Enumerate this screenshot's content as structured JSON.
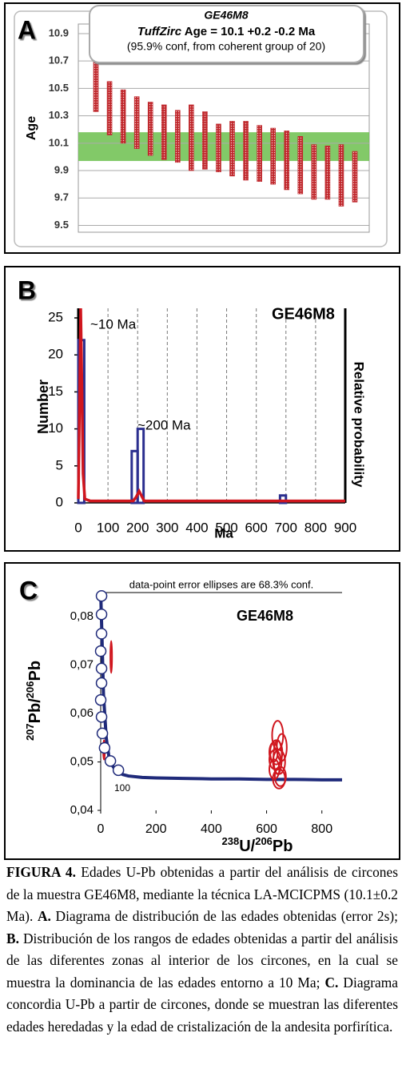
{
  "chart_data": [
    {
      "type": "range_bar",
      "panel": "A",
      "title": {
        "name": "GE46M8",
        "method": "TuffZirc",
        "age_text": " Age = 10.1   +0.2   -0.2   Ma",
        "conf": "(95.9% conf, from coherent group of 20)"
      },
      "ylabel": "Age",
      "low": [
        10.33,
        10.16,
        10.1,
        10.06,
        10.01,
        9.98,
        9.96,
        9.9,
        9.91,
        9.89,
        9.86,
        9.83,
        9.82,
        9.8,
        9.76,
        9.73,
        9.69,
        9.69,
        9.64,
        9.67
      ],
      "high": [
        10.71,
        10.55,
        10.49,
        10.44,
        10.4,
        10.38,
        10.34,
        10.38,
        10.33,
        10.24,
        10.26,
        10.26,
        10.23,
        10.21,
        10.19,
        10.15,
        10.09,
        10.08,
        10.09,
        10.04
      ],
      "color": "#c0282d",
      "band": {
        "low": 9.97,
        "high": 10.18,
        "color": "#6cbf4e"
      },
      "ylim": [
        9.45,
        10.97
      ],
      "yticks": [
        9.5,
        9.7,
        9.9,
        10.1,
        10.3,
        10.5,
        10.7,
        10.9
      ],
      "grid": true
    },
    {
      "type": "histogram",
      "panel": "B",
      "title": "GE46M8",
      "xlabel": "Ma",
      "ylabel": "Number",
      "y2label": "Relative probability",
      "bins": [
        0,
        20,
        180,
        200,
        220,
        680,
        700
      ],
      "counts": [
        22,
        0,
        7,
        10,
        0,
        1
      ],
      "color": "#2b2f8f",
      "probability": {
        "x": [
          0,
          4,
          8,
          12,
          16,
          22,
          40,
          185,
          195,
          205,
          212,
          222,
          240,
          900
        ],
        "values": [
          0.02,
          0.5,
          1.0,
          0.6,
          0.15,
          0.02,
          0.01,
          0.01,
          0.03,
          0.06,
          0.04,
          0.01,
          0.01,
          0.01
        ],
        "color": "#d0161e",
        "axis": "y2"
      },
      "annotations": [
        "~10 Ma",
        "~200 Ma"
      ],
      "xlim": [
        0,
        900
      ],
      "xticks": [
        0,
        100,
        200,
        300,
        400,
        500,
        600,
        700,
        800,
        900
      ],
      "ylim": [
        0,
        26.3
      ],
      "yticks": [
        0,
        5,
        10,
        15,
        20,
        25
      ],
      "y2lim": [
        0,
        1
      ],
      "grid": true
    },
    {
      "type": "scatter",
      "panel": "C",
      "title": "GE46M8",
      "note": "data-point error ellipses are 68.3% conf.",
      "ylabel": {
        "mass1": "207",
        "el1": "Pb/",
        "mass2": "206",
        "el2": "Pb"
      },
      "xlabel": {
        "mass1": "238",
        "el1": "U/",
        "mass2": "206",
        "el2": "Pb"
      },
      "concordia": {
        "x": [
          0,
          5,
          10,
          20,
          30,
          45,
          60,
          80,
          100,
          150,
          200,
          300,
          400,
          500,
          600,
          700,
          800,
          873
        ],
        "y": [
          0.085,
          0.075,
          0.064,
          0.055,
          0.051,
          0.049,
          0.048,
          0.0474,
          0.0471,
          0.0468,
          0.0467,
          0.0466,
          0.0465,
          0.0465,
          0.0464,
          0.0464,
          0.0463,
          0.0463
        ],
        "color": "#1f2a7a"
      },
      "markers": {
        "x": [
          3,
          3,
          3,
          0,
          3,
          3,
          0,
          3,
          6,
          14,
          35,
          64
        ],
        "y": [
          0.0843,
          0.0805,
          0.0765,
          0.0729,
          0.0693,
          0.0663,
          0.0628,
          0.0593,
          0.0559,
          0.0529,
          0.0502,
          0.0483
        ]
      },
      "marker_label": "100",
      "ellipses": {
        "x": [
          640,
          635,
          645,
          628,
          650,
          640,
          655,
          630,
          645,
          625,
          38,
          12
        ],
        "y": [
          0.0555,
          0.052,
          0.05,
          0.0485,
          0.047,
          0.051,
          0.053,
          0.0505,
          0.0465,
          0.052,
          0.0717,
          0.0525
        ],
        "x_error": [
          20,
          22,
          22,
          18,
          20,
          15,
          18,
          20,
          22,
          15,
          3,
          3
        ],
        "y_error": [
          0.003,
          0.0025,
          0.0025,
          0.002,
          0.002,
          0.0035,
          0.0028,
          0.002,
          0.002,
          0.002,
          0.0033,
          0.002
        ],
        "color": "#d0161e"
      },
      "xlim": [
        0,
        873
      ],
      "xticks": [
        0,
        200,
        400,
        600,
        800
      ],
      "ylim": [
        0.04,
        0.085
      ],
      "yticks": [
        {
          "value": 0.04,
          "label": "0,04"
        },
        {
          "value": 0.05,
          "label": "0,05"
        },
        {
          "value": 0.06,
          "label": "0,06"
        },
        {
          "value": 0.07,
          "label": "0,07"
        },
        {
          "value": 0.08,
          "label": "0,08"
        }
      ]
    }
  ],
  "caption": [
    {
      "text": "FIGURA 4.",
      "bold": true
    },
    {
      "text": " Edades U-Pb obtenidas a partir del análisis de circones de la muestra GE46M8, mediante la técnica LA-MCICPMS (10.1±0.2 Ma). ",
      "bold": false
    },
    {
      "text": "A.",
      "bold": true
    },
    {
      "text": " Diagrama de distribución de las edades obtenidas (error 2s); ",
      "bold": false
    },
    {
      "text": "B.",
      "bold": true
    },
    {
      "text": " Distribución de los rangos de edades obtenidas a partir del análisis de las diferentes zonas al interior de los circones, en la cual se muestra la dominancia de las edades entorno a 10 Ma; ",
      "bold": false
    },
    {
      "text": "C.",
      "bold": true
    },
    {
      "text": " Diagrama concordia U-Pb a partir de circones, donde se muestran las diferentes edades heredadas y la edad de cristalización de la andesita porfirítica.",
      "bold": false
    }
  ]
}
